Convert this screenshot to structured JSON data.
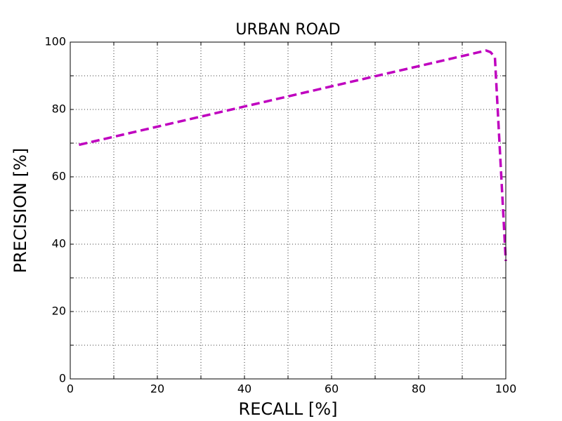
{
  "chart_data": {
    "type": "line",
    "title": "URBAN ROAD",
    "x_label": "RECALL [%]",
    "y_label": "PRECISION [%]",
    "x": [
      2,
      95.5,
      96.5,
      97.5,
      100
    ],
    "series": [
      {
        "name": "URBAN ROAD",
        "color": "#bf00bf",
        "values": [
          69.5,
          97.5,
          97,
          95.5,
          35
        ]
      }
    ],
    "xlim": [
      0,
      100
    ],
    "ylim": [
      0,
      100
    ],
    "xticks": [
      0,
      20,
      40,
      60,
      80,
      100
    ],
    "yticks": [
      0,
      20,
      40,
      60,
      80,
      100
    ],
    "xminorticks": [
      10,
      30,
      50,
      70,
      90
    ],
    "yminorticks": [
      10,
      30,
      50,
      70,
      90
    ],
    "grid": true,
    "line_style": "dashed"
  }
}
